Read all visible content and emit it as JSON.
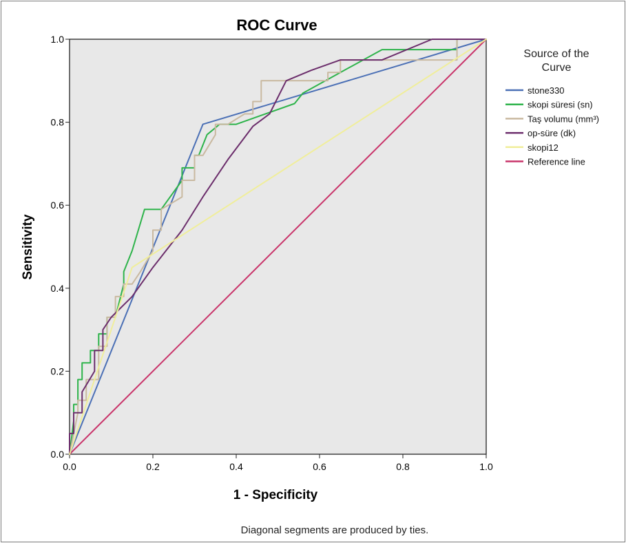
{
  "chart_data": {
    "type": "line",
    "title": "ROC Curve",
    "xlabel": "1 - Specificity",
    "ylabel": "Sensitivity",
    "xlim": [
      0,
      1
    ],
    "ylim": [
      0,
      1
    ],
    "x_ticks": [
      "0.0",
      "0.2",
      "0.4",
      "0.6",
      "0.8",
      "1.0"
    ],
    "y_ticks": [
      "0.0",
      "0.2",
      "0.4",
      "0.6",
      "0.8",
      "1.0"
    ],
    "grid": false,
    "legend_title": "Source of the Curve",
    "legend_placement": "right",
    "footnote": "Diagonal segments are produced by ties.",
    "background_color": "#e8e8e8",
    "series": [
      {
        "name": "stone330",
        "color": "#4a6fb5",
        "x": [
          0,
          0.32,
          1.0
        ],
        "y": [
          0,
          0.795,
          1.0
        ]
      },
      {
        "name": "skopi süresi (sn)",
        "color": "#2db34a",
        "x": [
          0,
          0.01,
          0.01,
          0.02,
          0.02,
          0.03,
          0.03,
          0.05,
          0.05,
          0.07,
          0.07,
          0.09,
          0.09,
          0.11,
          0.13,
          0.13,
          0.15,
          0.18,
          0.18,
          0.22,
          0.22,
          0.27,
          0.27,
          0.3,
          0.3,
          0.31,
          0.33,
          0.36,
          0.36,
          0.38,
          0.38,
          0.4,
          0.54,
          0.56,
          0.56,
          0.65,
          0.75,
          0.75,
          0.93,
          0.93,
          1.0
        ],
        "y": [
          0,
          0.08,
          0.12,
          0.12,
          0.18,
          0.18,
          0.22,
          0.22,
          0.25,
          0.25,
          0.29,
          0.29,
          0.33,
          0.33,
          0.41,
          0.44,
          0.49,
          0.59,
          0.59,
          0.59,
          0.59,
          0.66,
          0.69,
          0.69,
          0.72,
          0.72,
          0.77,
          0.795,
          0.795,
          0.795,
          0.795,
          0.795,
          0.845,
          0.87,
          0.87,
          0.92,
          0.975,
          0.975,
          0.975,
          1.0,
          1.0
        ]
      },
      {
        "name": "Taş volumu (mm³)",
        "color": "#c9b9a0",
        "x": [
          0,
          0.02,
          0.02,
          0.04,
          0.04,
          0.07,
          0.07,
          0.09,
          0.09,
          0.11,
          0.11,
          0.13,
          0.13,
          0.15,
          0.17,
          0.17,
          0.2,
          0.2,
          0.22,
          0.22,
          0.27,
          0.27,
          0.3,
          0.3,
          0.32,
          0.35,
          0.35,
          0.38,
          0.38,
          0.42,
          0.44,
          0.44,
          0.46,
          0.46,
          0.48,
          0.62,
          0.62,
          0.65,
          0.65,
          0.75,
          0.75,
          0.85,
          0.85,
          0.93,
          0.93,
          1.0
        ],
        "y": [
          0,
          0.1,
          0.13,
          0.13,
          0.18,
          0.18,
          0.26,
          0.26,
          0.33,
          0.33,
          0.38,
          0.38,
          0.41,
          0.41,
          0.44,
          0.44,
          0.49,
          0.54,
          0.54,
          0.59,
          0.62,
          0.66,
          0.66,
          0.72,
          0.72,
          0.77,
          0.795,
          0.795,
          0.795,
          0.82,
          0.82,
          0.85,
          0.85,
          0.9,
          0.9,
          0.9,
          0.92,
          0.92,
          0.95,
          0.95,
          0.95,
          0.95,
          0.95,
          0.95,
          1.0,
          1.0
        ]
      },
      {
        "name": "op-süre (dk)",
        "color": "#6b2d6b",
        "x": [
          0,
          0.0,
          0.01,
          0.01,
          0.03,
          0.03,
          0.06,
          0.06,
          0.08,
          0.08,
          0.1,
          0.15,
          0.2,
          0.27,
          0.32,
          0.38,
          0.44,
          0.48,
          0.52,
          0.58,
          0.65,
          0.68,
          0.75,
          0.87,
          1.0
        ],
        "y": [
          0,
          0.05,
          0.05,
          0.1,
          0.1,
          0.15,
          0.2,
          0.25,
          0.25,
          0.3,
          0.33,
          0.38,
          0.45,
          0.54,
          0.62,
          0.71,
          0.79,
          0.82,
          0.9,
          0.925,
          0.95,
          0.95,
          0.95,
          1.0,
          1.0
        ]
      },
      {
        "name": "skopi12",
        "color": "#f0ee9a",
        "x": [
          0,
          0.15,
          1.0
        ],
        "y": [
          0,
          0.45,
          1.0
        ]
      },
      {
        "name": "Reference line",
        "color": "#c9346a",
        "x": [
          0,
          1.0
        ],
        "y": [
          0,
          1.0
        ]
      }
    ]
  }
}
